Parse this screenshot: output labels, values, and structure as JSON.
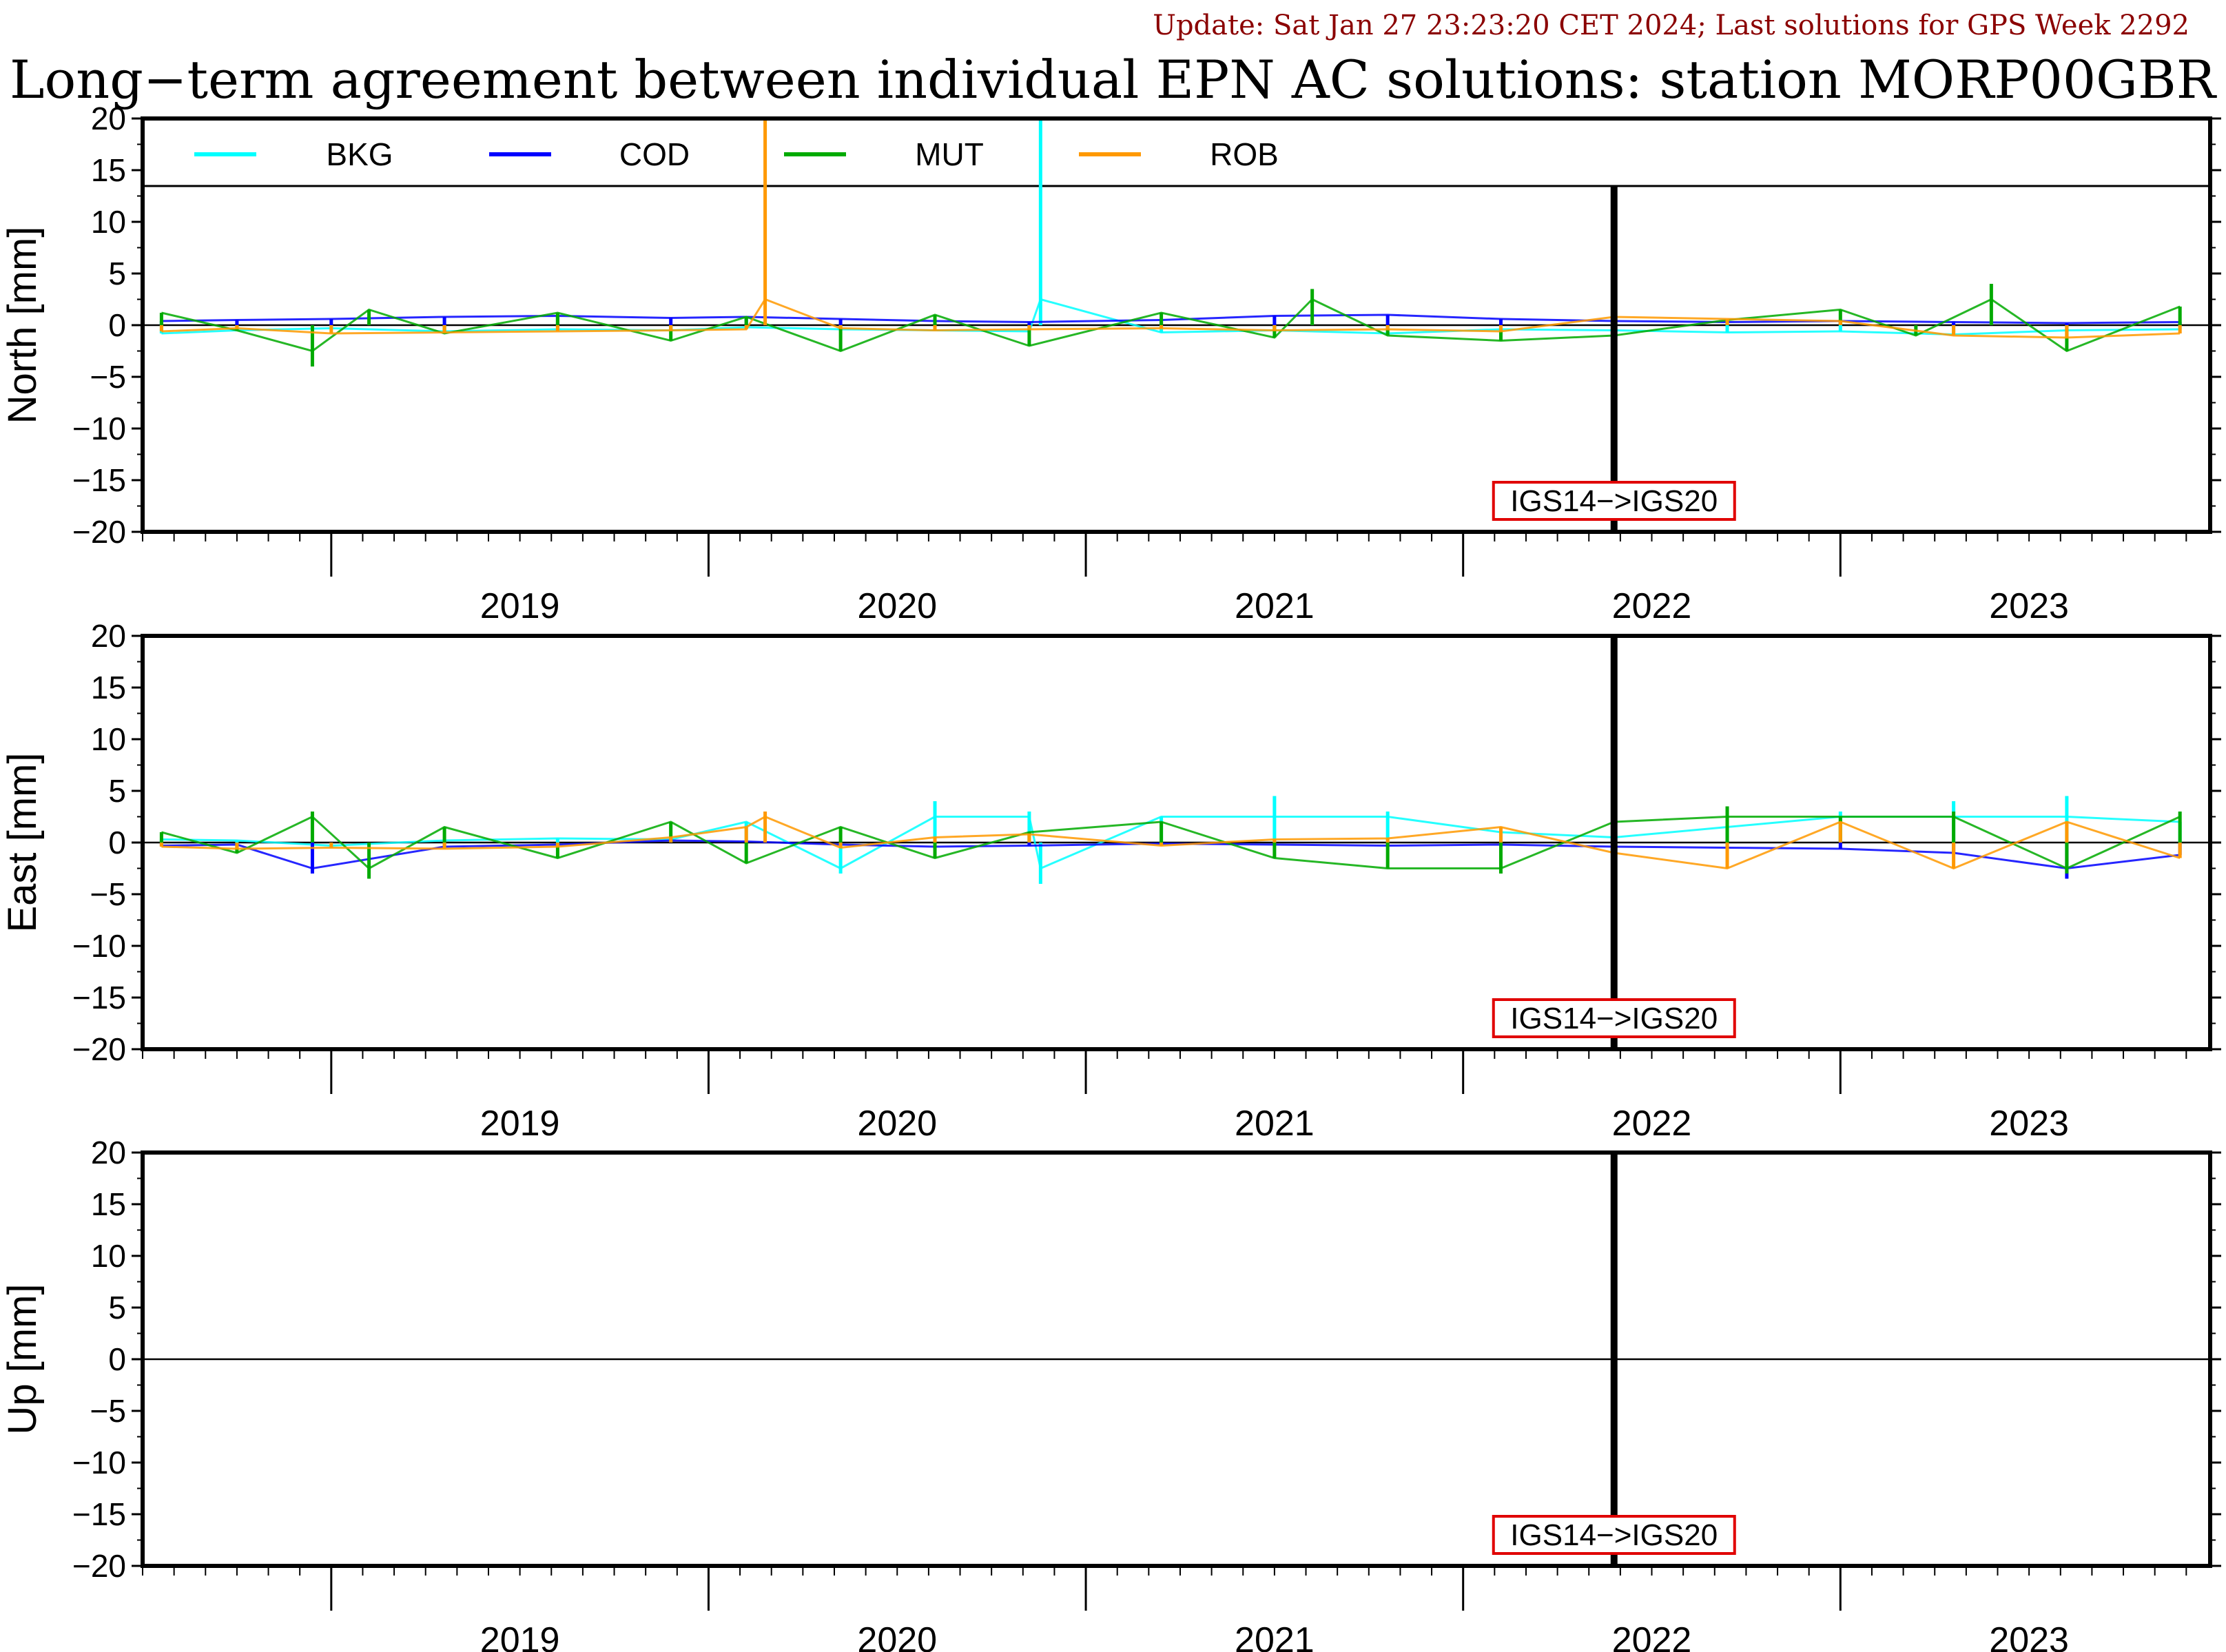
{
  "header": {
    "update_text": "Update: Sat Jan 27 23:23:20 CET 2024; Last solutions for GPS Week 2292",
    "title": "Long−term agreement between individual EPN AC solutions: station MORP00GBR"
  },
  "colors": {
    "BKG": "#00ffff",
    "COD": "#0000ff",
    "MUT": "#00aa00",
    "ROB": "#ff9900",
    "update_text": "#8b0000",
    "annotation_box": "#e00000"
  },
  "chart_data": [
    {
      "type": "line",
      "panel": "north",
      "ylabel": "North [mm]",
      "ylim": [
        -20,
        20
      ],
      "yticks": [
        20,
        15,
        10,
        5,
        0,
        -5,
        -10,
        -15,
        -20
      ],
      "xlim": [
        2018.5,
        2023.98
      ],
      "xtick_labels": [
        "2019",
        "2020",
        "2021",
        "2022",
        "2023"
      ],
      "zero_line": true,
      "legend": {
        "placement": "top-inside",
        "entries": [
          "BKG",
          "COD",
          "MUT",
          "ROB"
        ]
      },
      "annotation": {
        "text": "IGS14−>IGS20",
        "x": 2022.4
      },
      "frame_change_line_x": 2022.4,
      "series": [
        {
          "name": "BKG",
          "x": [
            2018.55,
            2018.75,
            2019.0,
            2019.3,
            2019.6,
            2019.9,
            2020.1,
            2020.35,
            2020.6,
            2020.85,
            2020.88,
            2021.2,
            2021.5,
            2021.8,
            2022.1,
            2022.4,
            2022.7,
            2023.0,
            2023.3,
            2023.6,
            2023.9
          ],
          "y": [
            -0.8,
            -0.5,
            -0.3,
            -0.6,
            -0.4,
            -0.5,
            -0.2,
            -0.4,
            -0.5,
            -0.6,
            20,
            -0.7,
            -0.5,
            -0.8,
            -0.4,
            -0.5,
            -0.7,
            -0.6,
            -0.9,
            -0.5,
            -0.4
          ]
        },
        {
          "name": "COD",
          "x": [
            2018.55,
            2018.75,
            2019.0,
            2019.3,
            2019.6,
            2019.9,
            2020.1,
            2020.35,
            2020.6,
            2020.85,
            2021.2,
            2021.5,
            2021.8,
            2022.1,
            2022.4,
            2022.7,
            2023.0,
            2023.3,
            2023.6,
            2023.9
          ],
          "y": [
            0.4,
            0.5,
            0.6,
            0.8,
            0.9,
            0.7,
            0.8,
            0.6,
            0.4,
            0.3,
            0.5,
            0.9,
            1.0,
            0.6,
            0.4,
            0.3,
            0.4,
            0.3,
            0.2,
            0.3
          ]
        },
        {
          "name": "MUT",
          "x": [
            2018.55,
            2018.75,
            2018.95,
            2019.1,
            2019.3,
            2019.6,
            2019.9,
            2020.1,
            2020.35,
            2020.6,
            2020.85,
            2021.2,
            2021.5,
            2021.6,
            2021.8,
            2022.1,
            2022.4,
            2022.7,
            2023.0,
            2023.2,
            2023.4,
            2023.6,
            2023.9
          ],
          "y": [
            1.2,
            -0.5,
            -4.0,
            1.5,
            -0.8,
            1.2,
            -1.5,
            0.8,
            -2.5,
            1.0,
            -2.0,
            1.2,
            -1.2,
            3.5,
            -1.0,
            -1.5,
            -1.0,
            0.5,
            1.5,
            -1.0,
            4.0,
            -2.5,
            1.8
          ]
        },
        {
          "name": "ROB",
          "x": [
            2018.55,
            2018.75,
            2019.0,
            2019.3,
            2019.6,
            2019.9,
            2020.1,
            2020.15,
            2020.35,
            2020.6,
            2020.85,
            2021.2,
            2021.5,
            2021.8,
            2022.1,
            2022.4,
            2022.7,
            2023.0,
            2023.3,
            2023.6,
            2023.9
          ],
          "y": [
            -0.6,
            -0.3,
            -0.8,
            -0.7,
            -0.6,
            -0.5,
            -0.4,
            20,
            -0.3,
            -0.5,
            -0.4,
            -0.3,
            -0.5,
            -0.4,
            -0.6,
            0.8,
            0.6,
            0.4,
            -1.0,
            -1.2,
            -0.8
          ]
        }
      ]
    },
    {
      "type": "line",
      "panel": "east",
      "ylabel": "East [mm]",
      "ylim": [
        -20,
        20
      ],
      "yticks": [
        20,
        15,
        10,
        5,
        0,
        -5,
        -10,
        -15,
        -20
      ],
      "xlim": [
        2018.5,
        2023.98
      ],
      "xtick_labels": [
        "2019",
        "2020",
        "2021",
        "2022",
        "2023"
      ],
      "zero_line": true,
      "annotation": {
        "text": "IGS14−>IGS20",
        "x": 2022.4
      },
      "frame_change_line_x": 2022.4,
      "series": [
        {
          "name": "BKG",
          "x": [
            2018.55,
            2018.75,
            2019.0,
            2019.3,
            2019.6,
            2019.9,
            2020.1,
            2020.35,
            2020.6,
            2020.85,
            2020.88,
            2021.2,
            2021.5,
            2021.8,
            2022.1,
            2022.4,
            2022.7,
            2023.0,
            2023.3,
            2023.6,
            2023.9
          ],
          "y": [
            0.3,
            0.2,
            -0.3,
            0.2,
            0.4,
            0.3,
            2.0,
            -3.0,
            4.0,
            3.0,
            -4.0,
            2.5,
            4.5,
            3.0,
            1.0,
            0.5,
            1.5,
            3.0,
            4.0,
            4.5,
            2.0
          ]
        },
        {
          "name": "COD",
          "x": [
            2018.55,
            2018.75,
            2018.95,
            2019.3,
            2019.6,
            2019.9,
            2020.1,
            2020.35,
            2020.6,
            2020.85,
            2021.2,
            2021.5,
            2021.8,
            2022.1,
            2022.4,
            2022.7,
            2023.0,
            2023.3,
            2023.6,
            2023.9
          ],
          "y": [
            -0.3,
            -0.2,
            -3.0,
            -0.4,
            -0.2,
            0.2,
            0.1,
            -0.2,
            -0.4,
            -0.3,
            -0.1,
            -0.2,
            -0.3,
            -0.2,
            -0.4,
            -0.5,
            -0.6,
            -1.0,
            -3.5,
            -1.2
          ]
        },
        {
          "name": "MUT",
          "x": [
            2018.55,
            2018.75,
            2018.95,
            2019.1,
            2019.3,
            2019.6,
            2019.9,
            2020.1,
            2020.35,
            2020.6,
            2020.85,
            2021.2,
            2021.5,
            2021.8,
            2022.1,
            2022.4,
            2022.7,
            2023.0,
            2023.3,
            2023.6,
            2023.9
          ],
          "y": [
            1.0,
            -1.0,
            3.0,
            -3.5,
            1.5,
            -1.5,
            2.0,
            -2.0,
            1.5,
            -1.5,
            1.0,
            2.0,
            -1.5,
            -2.5,
            -3.0,
            2.0,
            3.5,
            2.5,
            3.0,
            -3.0,
            3.0
          ]
        },
        {
          "name": "ROB",
          "x": [
            2018.55,
            2018.75,
            2019.0,
            2019.3,
            2019.6,
            2019.9,
            2020.1,
            2020.15,
            2020.35,
            2020.6,
            2020.85,
            2021.2,
            2021.5,
            2021.8,
            2022.1,
            2022.4,
            2022.7,
            2023.0,
            2023.3,
            2023.6,
            2023.9
          ],
          "y": [
            -0.4,
            -0.6,
            -0.5,
            -0.6,
            -0.4,
            0.5,
            1.5,
            3.0,
            -0.5,
            0.5,
            0.8,
            -0.3,
            0.3,
            0.4,
            1.5,
            -1.0,
            -2.5,
            2.0,
            -2.5,
            2.0,
            -1.5
          ]
        }
      ]
    },
    {
      "type": "line",
      "panel": "up",
      "ylabel": "Up [mm]",
      "ylim": [
        -20,
        20
      ],
      "yticks": [
        20,
        15,
        10,
        5,
        0,
        -5,
        -10,
        -15,
        -20
      ],
      "xlim": [
        2018.5,
        2023.98
      ],
      "xtick_labels": [
        "2019",
        "2020",
        "2021",
        "2022",
        "2023"
      ],
      "zero_line": true,
      "annotation": {
        "text": "IGS14−>IGS20",
        "x": 2022.4
      },
      "frame_change_line_x": 2022.4,
      "series": []
    }
  ]
}
